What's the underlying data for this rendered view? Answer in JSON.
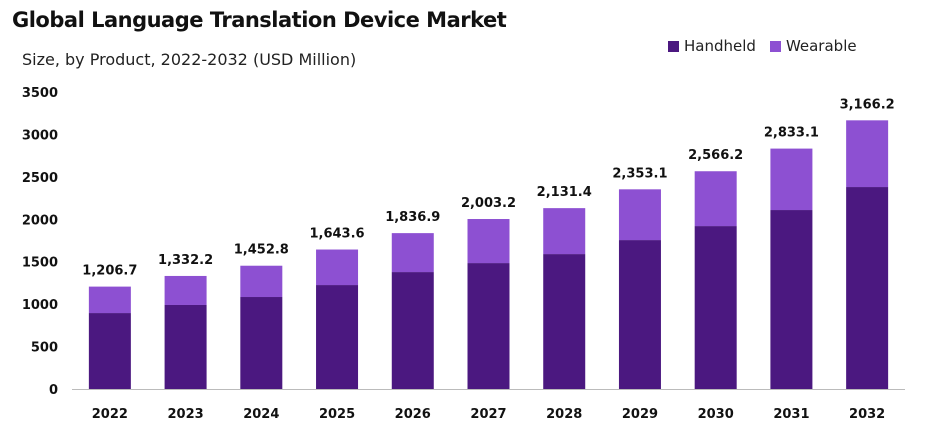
{
  "chart_data": {
    "type": "bar",
    "stacked": true,
    "title": "Global Language Translation Device Market",
    "subtitle": "Size, by Product, 2022-2032 (USD Million)",
    "xlabel": "",
    "ylabel": "",
    "ylim": [
      0,
      3500
    ],
    "yticks": [
      0,
      500,
      1000,
      1500,
      2000,
      2500,
      3000,
      3500
    ],
    "grid": false,
    "legend_position": "top-right",
    "categories": [
      "2022",
      "2023",
      "2024",
      "2025",
      "2026",
      "2027",
      "2028",
      "2029",
      "2030",
      "2031",
      "2032"
    ],
    "series": [
      {
        "name": "Handheld",
        "color": "#4b1880",
        "values": [
          895,
          990,
          1084,
          1225,
          1378,
          1484,
          1590,
          1755,
          1920,
          2109,
          2380
        ]
      },
      {
        "name": "Wearable",
        "color": "#8d50d2",
        "values": [
          311.7,
          342.2,
          368.8,
          418.6,
          458.9,
          519.2,
          541.4,
          598.1,
          646.2,
          724.1,
          786.2
        ]
      }
    ],
    "totals": [
      "1,206.7",
      "1,332.2",
      "1,452.8",
      "1,643.6",
      "1,836.9",
      "2,003.2",
      "2,131.4",
      "2,353.1",
      "2,566.2",
      "2,833.1",
      "3,166.2"
    ]
  }
}
